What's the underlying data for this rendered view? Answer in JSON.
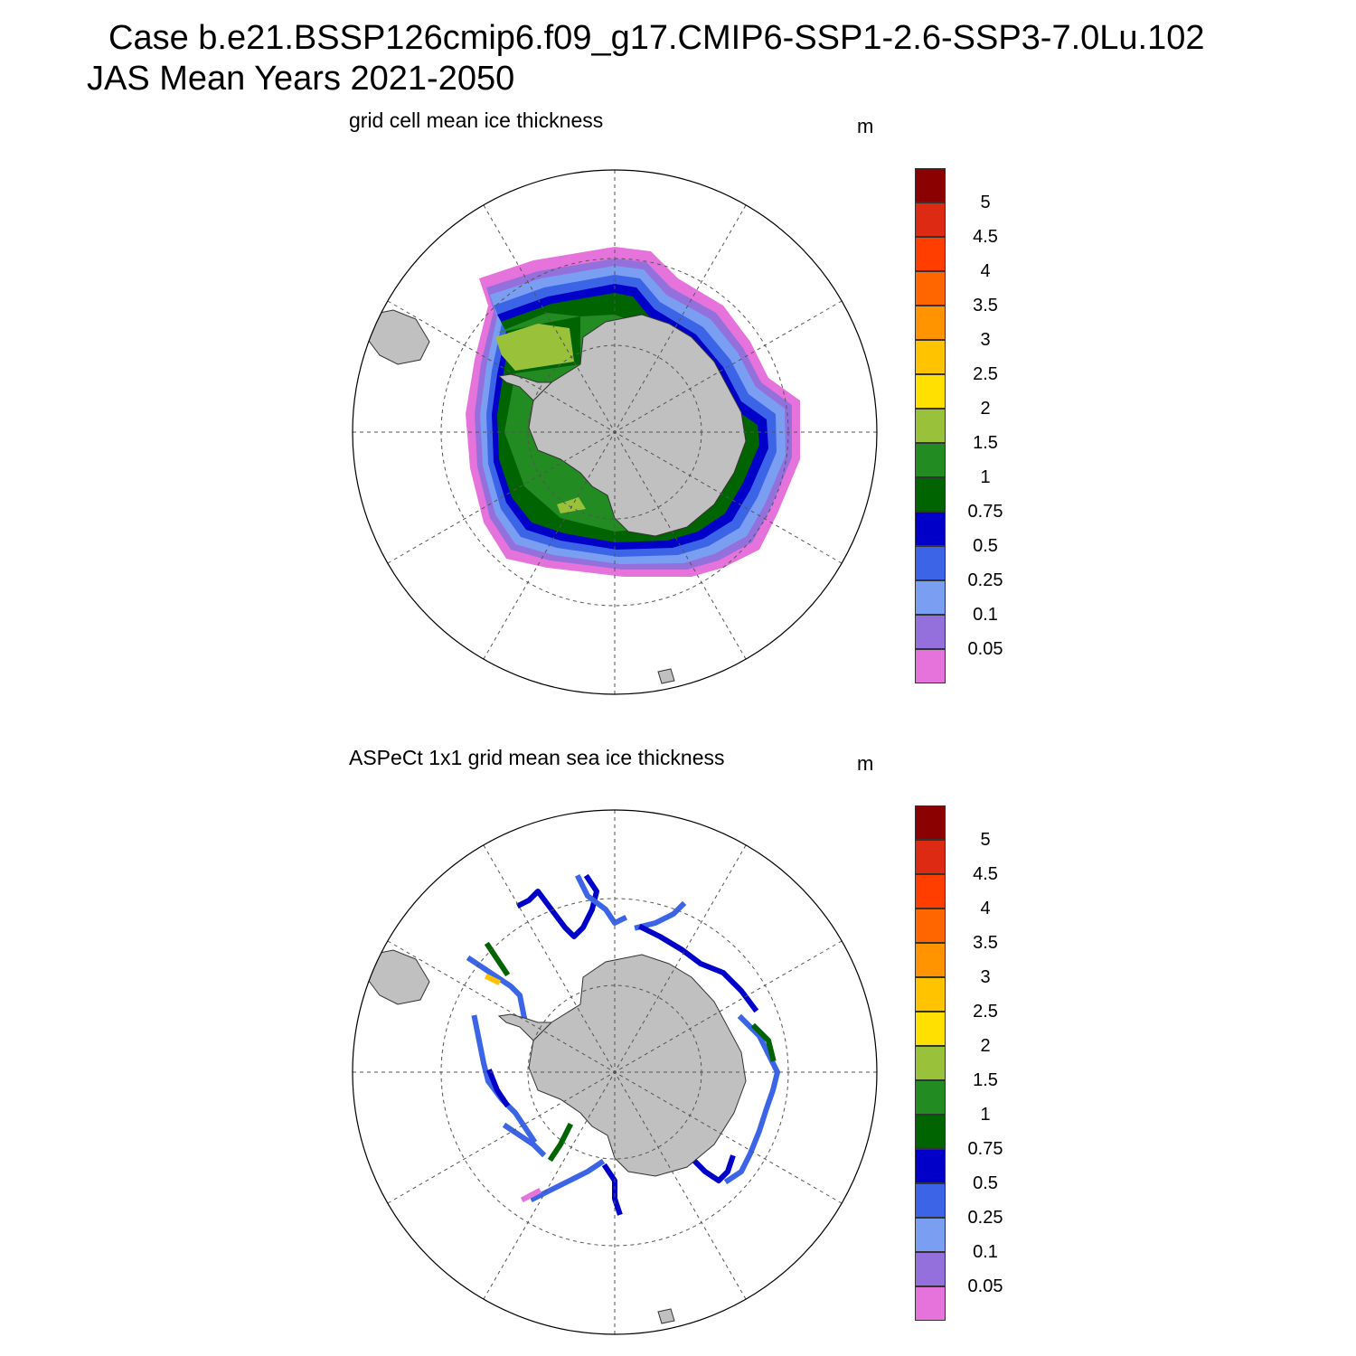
{
  "header": {
    "line1": "Case b.e21.BSSP126cmip6.f09_g17.CMIP6-SSP1-2.6-SSP3-7.0Lu.102",
    "line2": "JAS Mean   Years 2021-2050"
  },
  "panels": [
    {
      "title": "grid cell mean ice thickness",
      "unit": "m"
    },
    {
      "title": "ASPeCt 1x1 grid mean sea ice thickness",
      "unit": "m"
    }
  ],
  "colorbar": {
    "levels": [
      "5",
      "4.5",
      "4",
      "3.5",
      "3",
      "2.5",
      "2",
      "1.5",
      "1",
      "0.75",
      "0.5",
      "0.25",
      "0.1",
      "0.05"
    ],
    "colors": [
      "#8b0000",
      "#dd2a12",
      "#ff3e00",
      "#ff6600",
      "#ff9400",
      "#ffc300",
      "#ffe000",
      "#9ac13a",
      "#228b22",
      "#006400",
      "#0000c8",
      "#3c64e6",
      "#7a9ef2",
      "#9370db",
      "#e673dc"
    ]
  },
  "colors": {
    "land": "#c0c0c0",
    "coast": "#333333",
    "grid": "#555555"
  }
}
